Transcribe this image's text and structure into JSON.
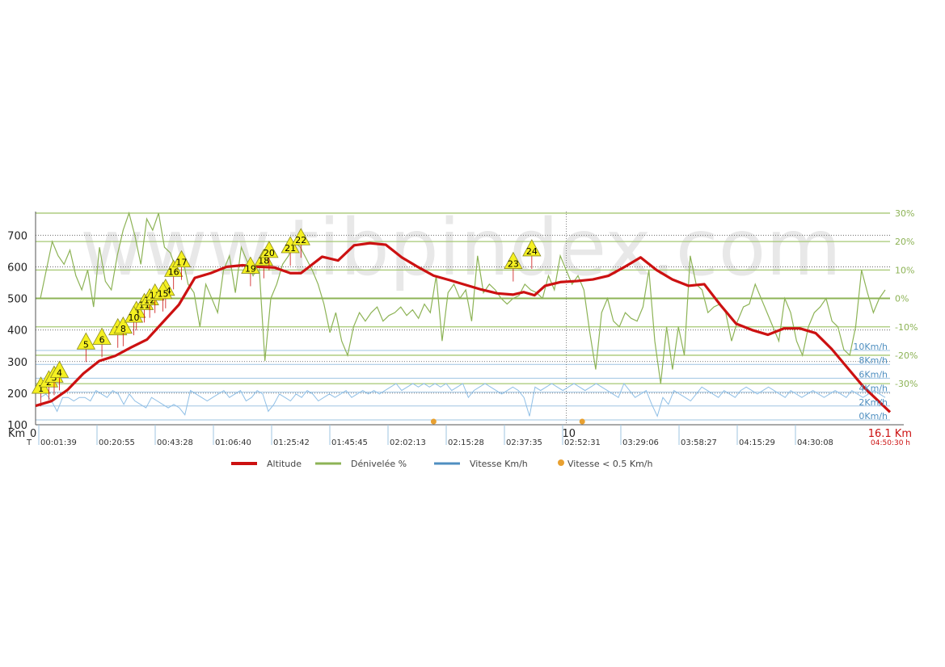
{
  "watermark": "www.tibpindex.com",
  "chart_data": {
    "type": "line",
    "left_axis": {
      "ticks": [
        100,
        200,
        300,
        400,
        500,
        600,
        700
      ],
      "ylim": [
        100,
        775
      ]
    },
    "right_axis": {
      "ticks": [
        -30,
        -20,
        -10,
        0,
        10,
        20,
        30
      ],
      "tick_labels": [
        "-30%",
        "-20%",
        "-10%",
        "0%",
        "10%",
        "20%",
        "30%"
      ],
      "ylim": [
        -40,
        30
      ]
    },
    "speed_axis": {
      "ticks": [
        0,
        2,
        4,
        6,
        8,
        10
      ],
      "tick_labels": [
        "0Km/h",
        "2Km/h",
        "4Km/h",
        "6Km/h",
        "8Km/h",
        "10Km/h"
      ]
    },
    "x_axis": {
      "km_prefix": "Km",
      "time_prefix": "T",
      "start_label": "0",
      "mid_label": "10",
      "mid_km": 10,
      "end_km_label": "16.1 Km",
      "end_time_label": "04:50:30 h",
      "xlim": [
        0,
        16.1
      ],
      "time_ticks": [
        {
          "km": 0.04,
          "label": "00:01:39"
        },
        {
          "km": 1.04,
          "label": "00:20:55"
        },
        {
          "km": 2.04,
          "label": "00:43:28"
        },
        {
          "km": 3.04,
          "label": "01:06:40"
        },
        {
          "km": 4.04,
          "label": "01:25:42"
        },
        {
          "km": 5.04,
          "label": "01:45:45"
        },
        {
          "km": 6.04,
          "label": "02:02:13"
        },
        {
          "km": 7.04,
          "label": "02:15:28"
        },
        {
          "km": 8.04,
          "label": "02:37:35"
        },
        {
          "km": 9.04,
          "label": "02:52:31"
        },
        {
          "km": 10.04,
          "label": "03:29:06"
        },
        {
          "km": 11.04,
          "label": "03:58:27"
        },
        {
          "km": 12.04,
          "label": "04:15:29"
        },
        {
          "km": 13.04,
          "label": "04:30:08"
        }
      ]
    },
    "legend": [
      {
        "name": "Altitude",
        "color": "#cc1111"
      },
      {
        "name": "Dénivelée %",
        "color": "#8db356"
      },
      {
        "name": "Vitesse Km/h",
        "color": "#4f8fc0"
      },
      {
        "name": "Vitesse < 0.5 Km/h",
        "color": "#e8a030"
      }
    ],
    "series": [
      {
        "name": "Altitude",
        "color": "#cc1111",
        "x": [
          0,
          0.3,
          0.6,
          0.9,
          1.2,
          1.5,
          1.8,
          2.1,
          2.4,
          2.7,
          3.0,
          3.3,
          3.6,
          3.9,
          4.2,
          4.5,
          4.8,
          5.0,
          5.4,
          5.7,
          6.0,
          6.3,
          6.6,
          6.9,
          7.2,
          7.5,
          7.8,
          8.1,
          8.4,
          8.7,
          9.0,
          9.2,
          9.4,
          9.6,
          9.9,
          10.2,
          10.5,
          10.8,
          11.1,
          11.4,
          11.7,
          12.0,
          12.3,
          12.6,
          12.9,
          13.2,
          13.5,
          13.8,
          14.1,
          14.4,
          14.7,
          15.0,
          15.3,
          15.6,
          16.1
        ],
        "values": [
          160,
          175,
          210,
          262,
          302,
          318,
          345,
          370,
          425,
          480,
          565,
          580,
          600,
          605,
          600,
          598,
          580,
          580,
          632,
          620,
          668,
          675,
          670,
          630,
          600,
          572,
          558,
          543,
          528,
          516,
          512,
          520,
          510,
          540,
          552,
          555,
          560,
          572,
          600,
          630,
          590,
          560,
          540,
          545,
          480,
          420,
          400,
          385,
          405,
          405,
          390,
          340,
          280,
          220,
          140
        ]
      },
      {
        "name": "Dénivelée %",
        "color": "#8db356",
        "values": [
          0,
          10,
          20,
          15,
          12,
          17,
          8,
          3,
          10,
          -3,
          18,
          6,
          3,
          15,
          24,
          30,
          22,
          12,
          28,
          24,
          30,
          18,
          16,
          10,
          15,
          5,
          2,
          -10,
          5,
          0,
          -5,
          10,
          15,
          2,
          18,
          13,
          8,
          12,
          -22,
          0,
          5,
          12,
          15,
          20,
          18,
          14,
          10,
          5,
          -2,
          -12,
          -5,
          -15,
          -20,
          -10,
          -5,
          -8,
          -5,
          -3,
          -8,
          -6,
          -5,
          -3,
          -6,
          -4,
          -7,
          -2,
          -5,
          8,
          -15,
          2,
          5,
          0,
          3,
          -8,
          15,
          2,
          5,
          3,
          0,
          -2,
          0,
          1,
          5,
          3,
          2,
          0,
          8,
          3,
          15,
          10,
          5,
          8,
          3,
          -12,
          -25,
          -5,
          0,
          -8,
          -10,
          -5,
          -7,
          -8,
          -3,
          10,
          -15,
          -30,
          -10,
          -25,
          -10,
          -20,
          15,
          5,
          3,
          -5,
          -3,
          -2,
          -5,
          -15,
          -8,
          -3,
          -2,
          5,
          0,
          -5,
          -10,
          -15,
          0,
          -5,
          -15,
          -20,
          -10,
          -5,
          -3,
          0,
          -8,
          -10,
          -18,
          -20,
          -10,
          10,
          2,
          -5,
          0,
          3
        ]
      },
      {
        "name": "Vitesse Km/h",
        "color": "#4f8fc0",
        "values": [
          3,
          3.5,
          2.5,
          1,
          3,
          3,
          2.5,
          3,
          3,
          2.5,
          4,
          3.5,
          3,
          4,
          3.5,
          2,
          3.5,
          2.5,
          2,
          1.5,
          3,
          2.5,
          2,
          1.5,
          2,
          1.5,
          0.5,
          4,
          3.5,
          3,
          2.5,
          3,
          3.5,
          4,
          3,
          3.5,
          4,
          2.5,
          3,
          4,
          3.5,
          1,
          2,
          3.5,
          3,
          2.5,
          3.5,
          3,
          4,
          3.5,
          2.5,
          3,
          3.5,
          3,
          3.5,
          4,
          3,
          3.5,
          4,
          3.5,
          4,
          3.5,
          4,
          4.5,
          5,
          4,
          4.5,
          5,
          4.5,
          5,
          4.5,
          5,
          4.5,
          5,
          4,
          4.5,
          5,
          3,
          4,
          4.5,
          5,
          4.5,
          4,
          3.5,
          4,
          4.5,
          4,
          3,
          0.3,
          4.5,
          4,
          4.5,
          5,
          4.5,
          4,
          4.5,
          5,
          4.5,
          4,
          4.5,
          5,
          4.5,
          4,
          3.5,
          3,
          5,
          4,
          3,
          3.5,
          4,
          2,
          0.3,
          3,
          2,
          4,
          3.5,
          3,
          2.5,
          3.5,
          4.5,
          4,
          3.5,
          3,
          4,
          3.5,
          3,
          4,
          4.5,
          4,
          3.5,
          4,
          4.5,
          4,
          3.5,
          3,
          4,
          3.5,
          3,
          3.5,
          4,
          3.5,
          3,
          3.5,
          4,
          3.5,
          3,
          4,
          3.5,
          3,
          3.5,
          4,
          3.5,
          3
        ]
      }
    ],
    "stop_markers": [
      {
        "km": 7.5,
        "label": ""
      },
      {
        "km": 10.3,
        "label": ""
      }
    ],
    "waypoints": [
      {
        "km": 0.1,
        "alt": 220,
        "label": "1"
      },
      {
        "km": 0.25,
        "alt": 240,
        "label": "2"
      },
      {
        "km": 0.35,
        "alt": 255,
        "label": "3"
      },
      {
        "km": 0.45,
        "alt": 270,
        "label": "4"
      },
      {
        "km": 0.95,
        "alt": 360,
        "label": "5"
      },
      {
        "km": 1.25,
        "alt": 375,
        "label": "6"
      },
      {
        "km": 1.55,
        "alt": 405,
        "label": "7"
      },
      {
        "km": 1.65,
        "alt": 410,
        "label": "8"
      },
      {
        "km": 1.9,
        "alt": 460,
        "label": "9"
      },
      {
        "km": 1.85,
        "alt": 445,
        "label": "10"
      },
      {
        "km": 2.05,
        "alt": 485,
        "label": "11"
      },
      {
        "km": 2.15,
        "alt": 500,
        "label": "12"
      },
      {
        "km": 2.25,
        "alt": 515,
        "label": "13"
      },
      {
        "km": 2.45,
        "alt": 530,
        "label": "14"
      },
      {
        "km": 2.4,
        "alt": 520,
        "label": "15"
      },
      {
        "km": 2.6,
        "alt": 590,
        "label": "16"
      },
      {
        "km": 2.75,
        "alt": 620,
        "label": "17"
      },
      {
        "km": 4.3,
        "alt": 625,
        "label": "18"
      },
      {
        "km": 4.05,
        "alt": 600,
        "label": "19"
      },
      {
        "km": 4.4,
        "alt": 650,
        "label": "20"
      },
      {
        "km": 4.8,
        "alt": 665,
        "label": "21"
      },
      {
        "km": 5.0,
        "alt": 690,
        "label": "22"
      },
      {
        "km": 9.0,
        "alt": 615,
        "label": "23"
      },
      {
        "km": 9.35,
        "alt": 655,
        "label": "24"
      }
    ]
  }
}
